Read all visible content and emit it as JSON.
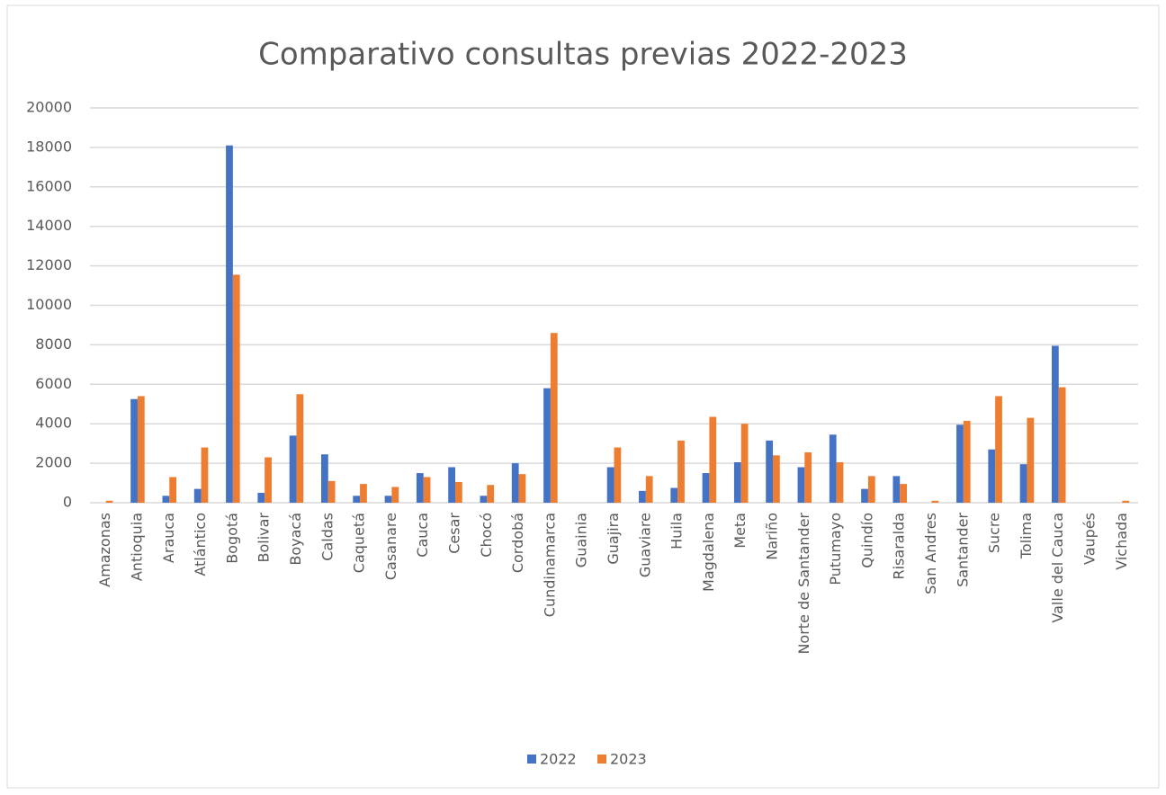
{
  "chart_data": {
    "type": "bar",
    "title": "Comparativo consultas previas 2022-2023",
    "categories": [
      "Amazonas",
      "Antioquia",
      "Arauca",
      "Atlántico",
      "Bogotá",
      "Bolivar",
      "Boyacá",
      "Caldas",
      "Caquetá",
      "Casanare",
      "Cauca",
      "Cesar",
      "Chocó",
      "Cordobá",
      "Cundinamarca",
      "Guainia",
      "Guajira",
      "Guaviare",
      "Huila",
      "Magdalena",
      "Meta",
      "Nariño",
      "Norte de Santander",
      "Putumayo",
      "Quindío",
      "Risaralda",
      "San Andres",
      "Santander",
      "Sucre",
      "Tolima",
      "Valle del Cauca",
      "Vaupés",
      "Vichada"
    ],
    "series": [
      {
        "name": "2022",
        "color": "#4472c4",
        "values": [
          0,
          5250,
          350,
          700,
          18100,
          500,
          3400,
          2450,
          350,
          350,
          1500,
          1800,
          350,
          2000,
          5800,
          0,
          1800,
          600,
          750,
          1500,
          2050,
          3150,
          1800,
          3450,
          700,
          1350,
          0,
          3950,
          2700,
          1950,
          7950,
          0,
          0
        ]
      },
      {
        "name": "2023",
        "color": "#ed7d31",
        "values": [
          100,
          5400,
          1300,
          2800,
          11550,
          2300,
          5500,
          1100,
          950,
          800,
          1300,
          1050,
          900,
          1450,
          8600,
          0,
          2800,
          1350,
          3150,
          4350,
          4000,
          2400,
          2550,
          2050,
          1350,
          950,
          100,
          4150,
          5400,
          4300,
          5850,
          0,
          100
        ]
      }
    ],
    "ylim": [
      0,
      20000
    ],
    "yticks": [
      0,
      2000,
      4000,
      6000,
      8000,
      10000,
      12000,
      14000,
      16000,
      18000,
      20000
    ],
    "grid": true,
    "legend": "bottom"
  }
}
